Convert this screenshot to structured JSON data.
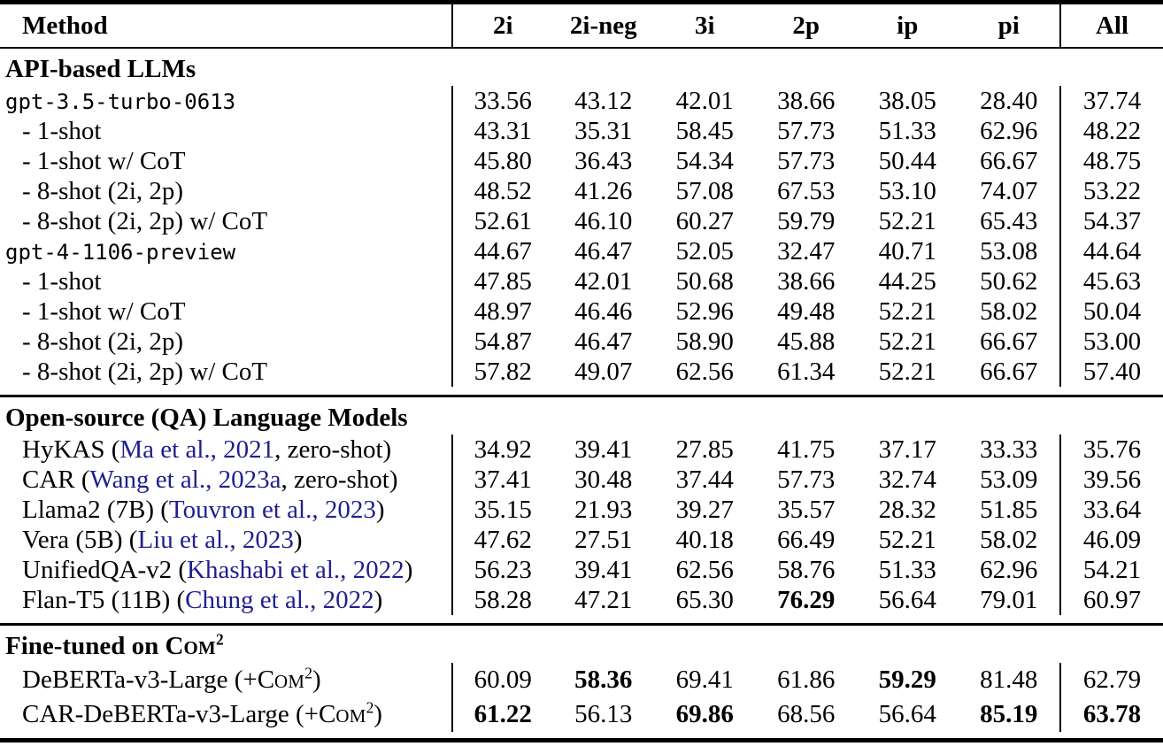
{
  "colors": {
    "citation": "#1f1f8f",
    "rule": "#000000",
    "background": "#ffffff",
    "text": "#000000"
  },
  "header": {
    "method": "Method",
    "columns": [
      "2i",
      "2i-neg",
      "3i",
      "2p",
      "ip",
      "pi",
      "All"
    ]
  },
  "chart_data": {
    "type": "table",
    "title": "",
    "columns": [
      "Method",
      "2i",
      "2i-neg",
      "3i",
      "2p",
      "ip",
      "pi",
      "All"
    ]
  },
  "sections": [
    {
      "title": [
        {
          "t": "API-based LLMs"
        }
      ],
      "rows": [
        {
          "label": [
            {
              "t": "gpt-3.5-turbo-0613",
              "c": "mono"
            }
          ],
          "indent": false,
          "vals": [
            {
              "v": "33.56"
            },
            {
              "v": "43.12"
            },
            {
              "v": "42.01"
            },
            {
              "v": "38.66"
            },
            {
              "v": "38.05"
            },
            {
              "v": "28.40"
            },
            {
              "v": "37.74"
            }
          ]
        },
        {
          "label": [
            {
              "t": "- 1-shot"
            }
          ],
          "indent": true,
          "vals": [
            {
              "v": "43.31"
            },
            {
              "v": "35.31"
            },
            {
              "v": "58.45"
            },
            {
              "v": "57.73"
            },
            {
              "v": "51.33"
            },
            {
              "v": "62.96"
            },
            {
              "v": "48.22"
            }
          ]
        },
        {
          "label": [
            {
              "t": "- 1-shot w/ CoT"
            }
          ],
          "indent": true,
          "vals": [
            {
              "v": "45.80"
            },
            {
              "v": "36.43"
            },
            {
              "v": "54.34"
            },
            {
              "v": "57.73"
            },
            {
              "v": "50.44"
            },
            {
              "v": "66.67"
            },
            {
              "v": "48.75"
            }
          ]
        },
        {
          "label": [
            {
              "t": "- 8-shot (2i, 2p)"
            }
          ],
          "indent": true,
          "vals": [
            {
              "v": "48.52"
            },
            {
              "v": "41.26"
            },
            {
              "v": "57.08"
            },
            {
              "v": "67.53"
            },
            {
              "v": "53.10"
            },
            {
              "v": "74.07"
            },
            {
              "v": "53.22"
            }
          ]
        },
        {
          "label": [
            {
              "t": "- 8-shot (2i, 2p) w/ CoT"
            }
          ],
          "indent": true,
          "vals": [
            {
              "v": "52.61"
            },
            {
              "v": "46.10"
            },
            {
              "v": "60.27"
            },
            {
              "v": "59.79"
            },
            {
              "v": "52.21"
            },
            {
              "v": "65.43"
            },
            {
              "v": "54.37"
            }
          ]
        },
        {
          "label": [
            {
              "t": "gpt-4-1106-preview",
              "c": "mono"
            }
          ],
          "indent": false,
          "vals": [
            {
              "v": "44.67"
            },
            {
              "v": "46.47"
            },
            {
              "v": "52.05"
            },
            {
              "v": "32.47"
            },
            {
              "v": "40.71"
            },
            {
              "v": "53.08"
            },
            {
              "v": "44.64"
            }
          ]
        },
        {
          "label": [
            {
              "t": "- 1-shot"
            }
          ],
          "indent": true,
          "vals": [
            {
              "v": "47.85"
            },
            {
              "v": "42.01"
            },
            {
              "v": "50.68"
            },
            {
              "v": "38.66"
            },
            {
              "v": "44.25"
            },
            {
              "v": "50.62"
            },
            {
              "v": "45.63"
            }
          ]
        },
        {
          "label": [
            {
              "t": "- 1-shot w/ CoT"
            }
          ],
          "indent": true,
          "vals": [
            {
              "v": "48.97"
            },
            {
              "v": "46.46"
            },
            {
              "v": "52.96"
            },
            {
              "v": "49.48"
            },
            {
              "v": "52.21"
            },
            {
              "v": "58.02"
            },
            {
              "v": "50.04"
            }
          ]
        },
        {
          "label": [
            {
              "t": "- 8-shot (2i, 2p)"
            }
          ],
          "indent": true,
          "vals": [
            {
              "v": "54.87"
            },
            {
              "v": "46.47"
            },
            {
              "v": "58.90"
            },
            {
              "v": "45.88"
            },
            {
              "v": "52.21"
            },
            {
              "v": "66.67"
            },
            {
              "v": "53.00"
            }
          ]
        },
        {
          "label": [
            {
              "t": "- 8-shot (2i, 2p) w/ CoT"
            }
          ],
          "indent": true,
          "vals": [
            {
              "v": "57.82"
            },
            {
              "v": "49.07"
            },
            {
              "v": "62.56"
            },
            {
              "v": "61.34"
            },
            {
              "v": "52.21"
            },
            {
              "v": "66.67"
            },
            {
              "v": "57.40"
            }
          ]
        }
      ]
    },
    {
      "title": [
        {
          "t": "Open-source (QA) Language Models"
        }
      ],
      "rows": [
        {
          "label": [
            {
              "t": "HyKAS ("
            },
            {
              "t": "Ma et al., 2021",
              "c": "cite"
            },
            {
              "t": ", zero-shot)"
            }
          ],
          "indent": true,
          "vals": [
            {
              "v": "34.92"
            },
            {
              "v": "39.41"
            },
            {
              "v": "27.85"
            },
            {
              "v": "41.75"
            },
            {
              "v": "37.17"
            },
            {
              "v": "33.33"
            },
            {
              "v": "35.76"
            }
          ]
        },
        {
          "label": [
            {
              "t": "CAR ("
            },
            {
              "t": "Wang et al., 2023a",
              "c": "cite"
            },
            {
              "t": ", zero-shot)"
            }
          ],
          "indent": true,
          "vals": [
            {
              "v": "37.41"
            },
            {
              "v": "30.48"
            },
            {
              "v": "37.44"
            },
            {
              "v": "57.73"
            },
            {
              "v": "32.74"
            },
            {
              "v": "53.09"
            },
            {
              "v": "39.56"
            }
          ]
        },
        {
          "label": [
            {
              "t": "Llama2 (7B) ("
            },
            {
              "t": "Touvron et al., 2023",
              "c": "cite"
            },
            {
              "t": ")"
            }
          ],
          "indent": true,
          "vals": [
            {
              "v": "35.15"
            },
            {
              "v": "21.93"
            },
            {
              "v": "39.27"
            },
            {
              "v": "35.57"
            },
            {
              "v": "28.32"
            },
            {
              "v": "51.85"
            },
            {
              "v": "33.64"
            }
          ]
        },
        {
          "label": [
            {
              "t": "Vera (5B) ("
            },
            {
              "t": "Liu et al., 2023",
              "c": "cite"
            },
            {
              "t": ")"
            }
          ],
          "indent": true,
          "vals": [
            {
              "v": "47.62"
            },
            {
              "v": "27.51"
            },
            {
              "v": "40.18"
            },
            {
              "v": "66.49"
            },
            {
              "v": "52.21"
            },
            {
              "v": "58.02"
            },
            {
              "v": "46.09"
            }
          ]
        },
        {
          "label": [
            {
              "t": "UnifiedQA-v2 ("
            },
            {
              "t": "Khashabi et al., 2022",
              "c": "cite"
            },
            {
              "t": ")"
            }
          ],
          "indent": true,
          "vals": [
            {
              "v": "56.23"
            },
            {
              "v": "39.41"
            },
            {
              "v": "62.56"
            },
            {
              "v": "58.76"
            },
            {
              "v": "51.33"
            },
            {
              "v": "62.96"
            },
            {
              "v": "54.21"
            }
          ]
        },
        {
          "label": [
            {
              "t": "Flan-T5 (11B) ("
            },
            {
              "t": "Chung et al., 2022",
              "c": "cite"
            },
            {
              "t": ")"
            }
          ],
          "indent": true,
          "vals": [
            {
              "v": "58.28"
            },
            {
              "v": "47.21"
            },
            {
              "v": "65.30"
            },
            {
              "v": "76.29",
              "b": true
            },
            {
              "v": "56.64"
            },
            {
              "v": "79.01"
            },
            {
              "v": "60.97"
            }
          ]
        }
      ]
    },
    {
      "title": [
        {
          "t": "Fine-tuned on "
        },
        {
          "t": "C"
        },
        {
          "t": "OM",
          "c": "sc"
        },
        {
          "t": "2",
          "c": "sup"
        }
      ],
      "rows": [
        {
          "label": [
            {
              "t": "DeBERTa-v3-Large (+"
            },
            {
              "t": "C"
            },
            {
              "t": "OM",
              "c": "sc"
            },
            {
              "t": "2",
              "c": "sup"
            },
            {
              "t": ")"
            }
          ],
          "indent": true,
          "vals": [
            {
              "v": "60.09"
            },
            {
              "v": "58.36",
              "b": true
            },
            {
              "v": "69.41"
            },
            {
              "v": "61.86"
            },
            {
              "v": "59.29",
              "b": true
            },
            {
              "v": "81.48"
            },
            {
              "v": "62.79"
            }
          ]
        },
        {
          "label": [
            {
              "t": "CAR-DeBERTa-v3-Large (+"
            },
            {
              "t": "C"
            },
            {
              "t": "OM",
              "c": "sc"
            },
            {
              "t": "2",
              "c": "sup"
            },
            {
              "t": ")"
            }
          ],
          "indent": true,
          "vals": [
            {
              "v": "61.22",
              "b": true
            },
            {
              "v": "56.13"
            },
            {
              "v": "69.86",
              "b": true
            },
            {
              "v": "68.56"
            },
            {
              "v": "56.64"
            },
            {
              "v": "85.19",
              "b": true
            },
            {
              "v": "63.78",
              "b": true
            }
          ]
        }
      ]
    }
  ]
}
